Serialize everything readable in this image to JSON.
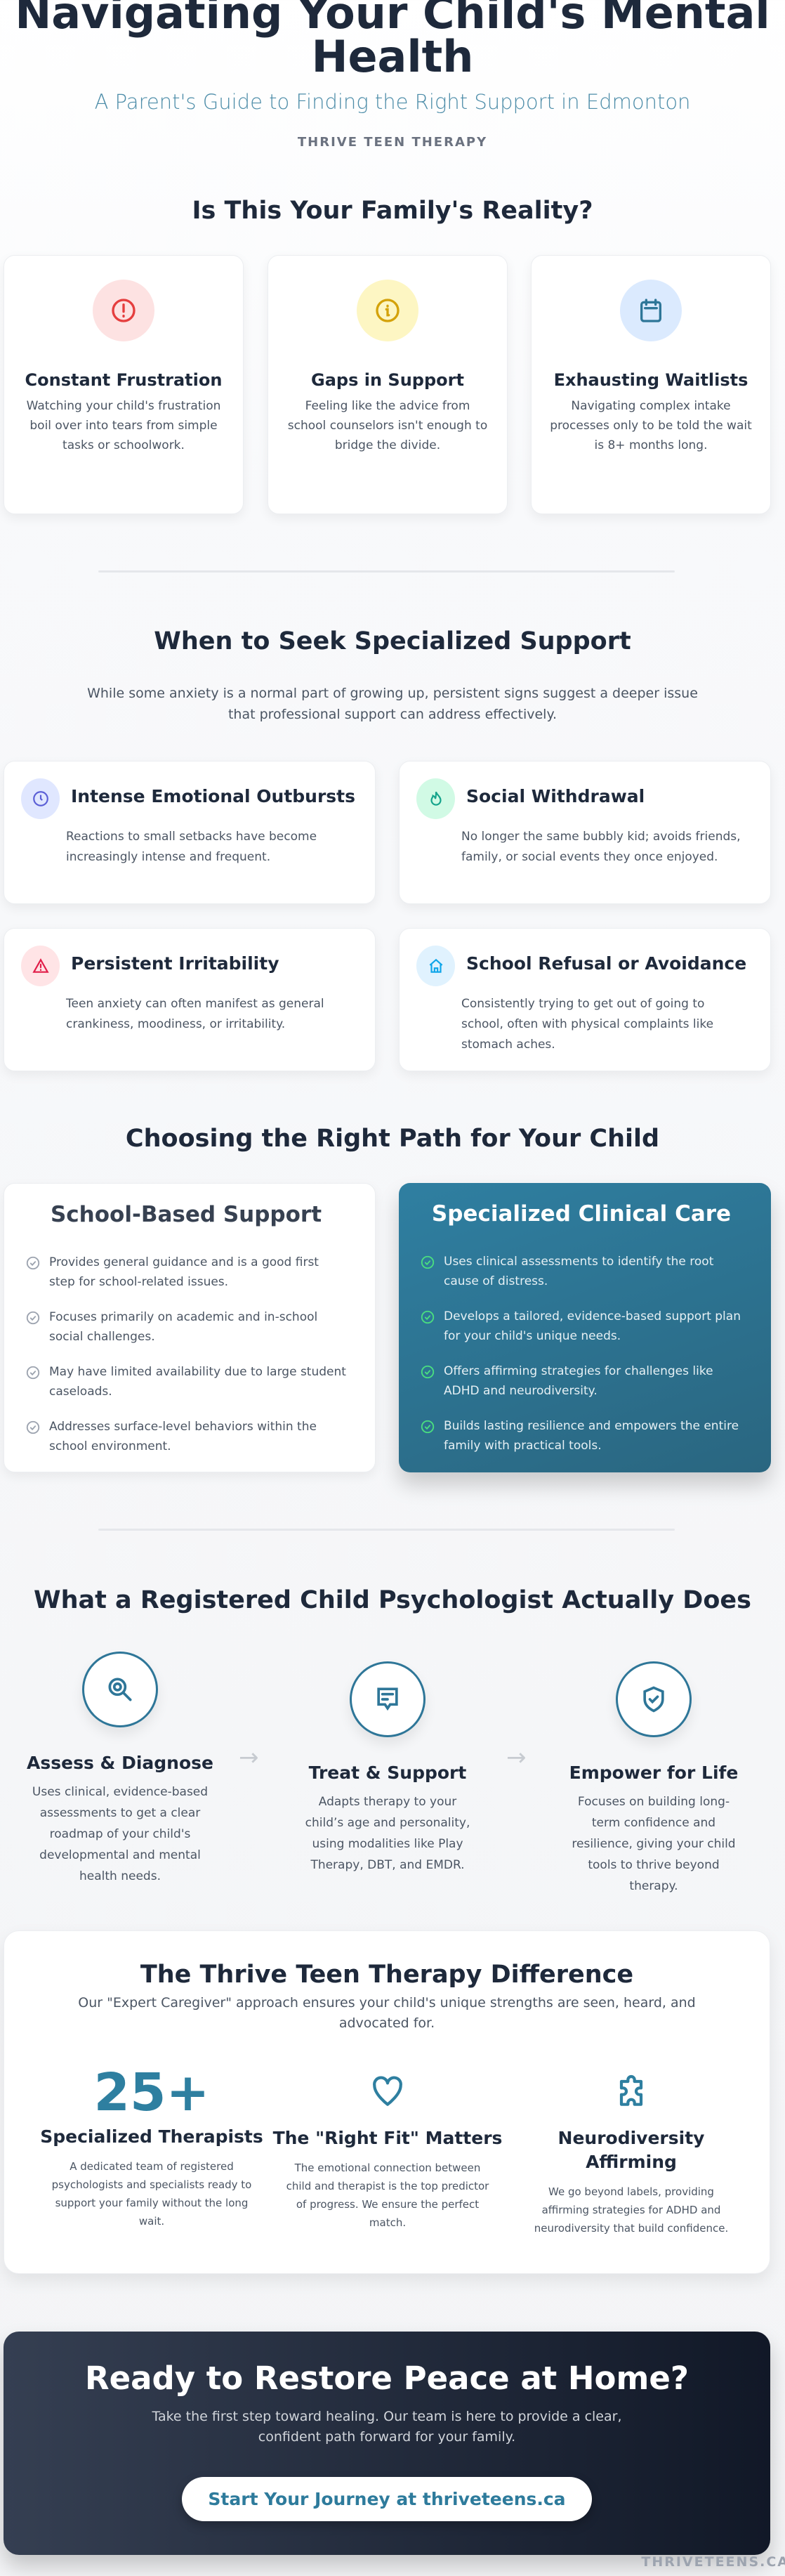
{
  "header": {
    "title": "Navigating Your Child's Mental Health",
    "subtitle": "A Parent's Guide to Finding the Right Support in Edmonton",
    "brand": "THRIVE TEEN THERAPY"
  },
  "reality": {
    "title": "Is This Your Family's Reality?",
    "cards": [
      {
        "icon": "alert-circle-icon",
        "color": "#e53e3e",
        "bg": "#fde2e2",
        "title": "Constant Frustration",
        "text": "Watching your child's frustration boil over into tears from simple tasks or schoolwork."
      },
      {
        "icon": "info-circle-icon",
        "color": "#d4a20a",
        "bg": "#fdf6c3",
        "title": "Gaps in Support",
        "text": "Feeling like the advice from school counselors isn't enough to bridge the divide."
      },
      {
        "icon": "calendar-icon",
        "color": "#2e7698",
        "bg": "#dbeafe",
        "title": "Exhausting Waitlists",
        "text": "Navigating complex intake processes only to be told the wait is 8+ months long."
      }
    ]
  },
  "signs": {
    "title": "When to Seek Specialized Support",
    "intro": "While some anxiety is a normal part of growing up, persistent signs suggest a deeper issue that professional support can address effectively.",
    "cards": [
      {
        "icon": "clock-icon",
        "color": "#5b5fd6",
        "bg": "#e0e7ff",
        "title": "Intense Emotional Outbursts",
        "text": "Reactions to small setbacks have become increasingly intense and frequent."
      },
      {
        "icon": "flame-icon",
        "color": "#14a38b",
        "bg": "#d1fae5",
        "title": "Social Withdrawal",
        "text": "No longer the same bubbly kid; avoids friends, family, or social events they once enjoyed."
      },
      {
        "icon": "warning-triangle-icon",
        "color": "#e11d48",
        "bg": "#ffe4e6",
        "title": "Persistent Irritability",
        "text": "Teen anxiety can often manifest as general crankiness, moodiness, or irritability."
      },
      {
        "icon": "home-icon",
        "color": "#0ea5e9",
        "bg": "#e0f2fe",
        "title": "School Refusal or Avoidance",
        "text": "Consistently trying to get out of going to school, often with physical complaints like stomach aches."
      }
    ]
  },
  "paths": {
    "title": "Choosing the Right Path for Your Child",
    "school": {
      "title": "School-Based Support",
      "items": [
        "Provides general guidance and is a good first step for school-related issues.",
        "Focuses primarily on academic and in-school social challenges.",
        "May have limited availability due to large student caseloads.",
        "Addresses surface-level behaviors within the school environment."
      ]
    },
    "clinical": {
      "title": "Specialized Clinical Care",
      "items": [
        "Uses clinical assessments to identify the root cause of distress.",
        "Develops a tailored, evidence-based support plan for your child's unique needs.",
        "Offers affirming strategies for challenges like ADHD and neurodiversity.",
        "Builds lasting resilience and empowers the entire family with practical tools."
      ]
    }
  },
  "steps": {
    "title": "What a Registered Child Psychologist Actually Does",
    "arrow": "→",
    "items": [
      {
        "icon": "search-icon",
        "title": "Assess & Diagnose",
        "text": "Uses clinical, evidence-based assessments to get a clear roadmap of your child's developmental and mental health needs."
      },
      {
        "icon": "chat-icon",
        "title": "Treat & Support",
        "text": "Adapts therapy to your child’s age and personality, using modalities like Play Therapy, DBT, and EMDR."
      },
      {
        "icon": "shield-check-icon",
        "title": "Empower for Life",
        "text": "Focuses on building long-term confidence and resilience, giving your child tools to thrive beyond therapy."
      }
    ]
  },
  "difference": {
    "title": "The Thrive Teen Therapy Difference",
    "subtitle": "Our \"Expert Caregiver\" approach ensures your child's unique strengths are seen, heard, and advocated for.",
    "stat": "25+",
    "features": [
      {
        "title": "Specialized Therapists",
        "text": "A dedicated team of registered psychologists and specialists ready to support your family without the long wait."
      },
      {
        "icon": "heart-icon",
        "title": "The \"Right Fit\" Matters",
        "text": "The emotional connection between child and therapist is the top predictor of progress. We ensure the perfect match."
      },
      {
        "icon": "puzzle-icon",
        "title": "Neurodiversity Affirming",
        "text": "We go beyond labels, providing affirming strategies for ADHD and neurodiversity that build confidence."
      }
    ]
  },
  "cta": {
    "title": "Ready to Restore Peace at Home?",
    "text": "Take the first step toward healing. Our team is here to provide a clear, confident path forward for your family.",
    "button": "Start Your Journey at thriveteens.ca"
  },
  "footer": {
    "brand": "THRIVETEENS.CA"
  },
  "colors": {
    "accent": "#2e7b9c",
    "dark": "#1e293b",
    "check_green": "#4ade80"
  }
}
